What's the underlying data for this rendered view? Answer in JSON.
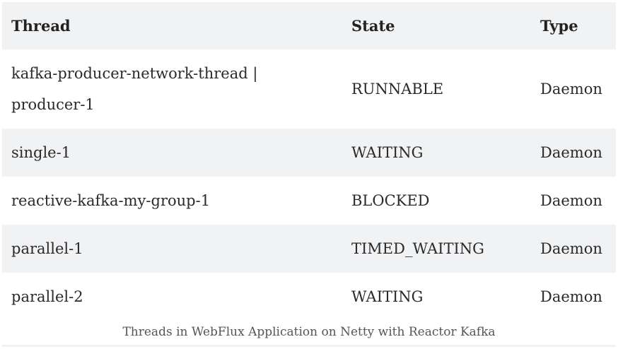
{
  "table": {
    "headers": [
      "Thread",
      "State",
      "Type"
    ],
    "rows": [
      [
        "kafka-producer-network-thread | producer-1",
        "RUNNABLE",
        "Daemon"
      ],
      [
        "single-1",
        "WAITING",
        "Daemon"
      ],
      [
        "reactive-kafka-my-group-1",
        "BLOCKED",
        "Daemon"
      ],
      [
        "parallel-1",
        "TIMED_WAITING",
        "Daemon"
      ],
      [
        "parallel-2",
        "WAITING",
        "Daemon"
      ]
    ]
  },
  "caption": "Threads in WebFlux Application on Netty with Reactor Kafka"
}
